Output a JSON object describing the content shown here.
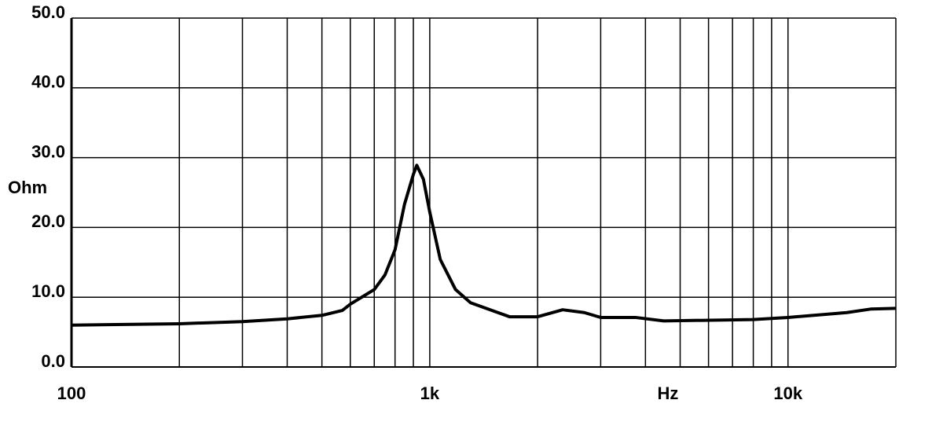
{
  "chart_data": {
    "type": "line",
    "x_label": "Hz",
    "y_label": "Ohm",
    "x": [
      100,
      200,
      300,
      400,
      500,
      570,
      600,
      700,
      750,
      800,
      850,
      900,
      920,
      960,
      1000,
      1070,
      1180,
      1300,
      1670,
      2000,
      2350,
      2700,
      3000,
      3750,
      4500,
      8000,
      10000,
      14600,
      17000,
      20000
    ],
    "series": [
      {
        "color": "#000000",
        "values": [
          6.0,
          6.2,
          6.5,
          6.9,
          7.4,
          8.1,
          9.0,
          11.1,
          13.2,
          16.8,
          23.3,
          27.6,
          28.9,
          26.9,
          22.2,
          15.4,
          11.1,
          9.2,
          7.2,
          7.2,
          8.2,
          7.8,
          7.1,
          7.1,
          6.6,
          6.8,
          7.1,
          7.8,
          8.3,
          8.4
        ]
      }
    ],
    "xlim": [
      100,
      20000
    ],
    "log_x": true,
    "xticks": [
      {
        "value": 100,
        "label": "100"
      },
      {
        "value": 1000,
        "label": "1k"
      },
      {
        "value": 10000,
        "label": "10k"
      }
    ],
    "x_grid": [
      200,
      300,
      400,
      500,
      600,
      700,
      800,
      900,
      1000,
      2000,
      3000,
      4000,
      5000,
      6000,
      7000,
      8000,
      9000,
      10000,
      20000
    ],
    "ylim": [
      0,
      50
    ],
    "yticks": [
      {
        "value": 0,
        "label": "0.0"
      },
      {
        "value": 10,
        "label": "10.0"
      },
      {
        "value": 20,
        "label": "20.0"
      },
      {
        "value": 30,
        "label": "30.0"
      },
      {
        "value": 40,
        "label": "40.0"
      },
      {
        "value": 50,
        "label": "50.0"
      }
    ],
    "grid": true
  }
}
